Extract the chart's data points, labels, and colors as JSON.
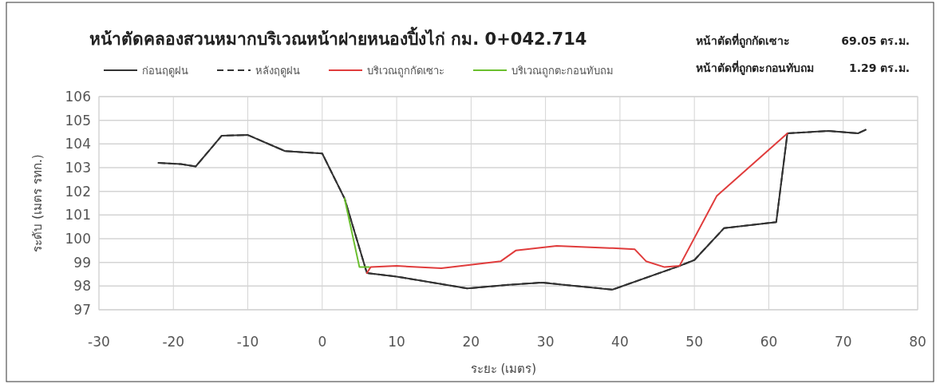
{
  "chart_data": {
    "type": "line",
    "title": "หน้าตัดคลองสวนหมากบริเวณหน้าฝายหนองปิ้งไก่ กม. 0+042.714",
    "xlabel": "ระยะ (เมตร)",
    "ylabel": "ระดับ (เมตร รทก.)",
    "annotations": [
      "หน้าตัดที่ถูกกัดเซาะ",
      "69.05 ตร.ม.",
      "หน้าตัดที่ถูกตะกอนทับถม",
      "1.29 ตร.ม."
    ],
    "xlim": [
      -30,
      80
    ],
    "ylim": [
      97,
      106
    ],
    "xticks": [
      -30,
      -20,
      -10,
      0,
      10,
      20,
      30,
      40,
      50,
      60,
      70,
      80
    ],
    "yticks": [
      97,
      98,
      99,
      100,
      101,
      102,
      103,
      104,
      105,
      106
    ],
    "grid": true,
    "legend": "top",
    "series": [
      {
        "name": "ก่อนฤดูฝน",
        "color": "#333333",
        "line_style": "solid",
        "x": [
          -22,
          -19,
          -17,
          -13.5,
          -10,
          -5,
          0,
          3,
          6,
          10,
          19.5,
          25,
          29.5,
          39,
          48,
          50,
          54,
          61,
          62.5,
          68,
          72,
          73
        ],
        "values": [
          103.2,
          103.15,
          103.05,
          104.35,
          104.38,
          103.7,
          103.6,
          101.7,
          98.55,
          98.4,
          97.9,
          98.05,
          98.15,
          97.85,
          98.85,
          99.1,
          100.45,
          100.7,
          104.45,
          104.55,
          104.45,
          104.6
        ]
      },
      {
        "name": "หลังฤดูฝน",
        "color": "#333333",
        "line_style": "dashed",
        "x": [
          -22,
          -19,
          -17,
          -13.5,
          -10,
          -5,
          0,
          3,
          6,
          10,
          19.5,
          25,
          29.5,
          39,
          48,
          50,
          54,
          61,
          62.5,
          68,
          72,
          73
        ],
        "values": [
          103.2,
          103.15,
          103.05,
          104.35,
          104.38,
          103.7,
          103.6,
          101.7,
          98.55,
          98.4,
          97.9,
          98.05,
          98.15,
          97.85,
          98.85,
          99.1,
          100.45,
          100.7,
          104.45,
          104.55,
          104.45,
          104.6
        ]
      },
      {
        "name": "บริเวณถูกกัดเซาะ",
        "color": "#e03c3c",
        "line_style": "solid",
        "x": [
          6,
          6.5,
          10,
          16,
          24,
          26,
          31.5,
          39,
          42,
          43.5,
          46,
          48,
          53,
          62.5
        ],
        "values": [
          98.55,
          98.8,
          98.85,
          98.75,
          99.05,
          99.5,
          99.7,
          99.6,
          99.55,
          99.05,
          98.8,
          98.85,
          101.8,
          104.45
        ]
      },
      {
        "name": "บริเวณถูกตะกอนทับถม",
        "color": "#6abf2e",
        "line_style": "solid",
        "x": [
          3,
          5,
          6.3
        ],
        "values": [
          101.7,
          98.8,
          98.8
        ]
      }
    ]
  }
}
